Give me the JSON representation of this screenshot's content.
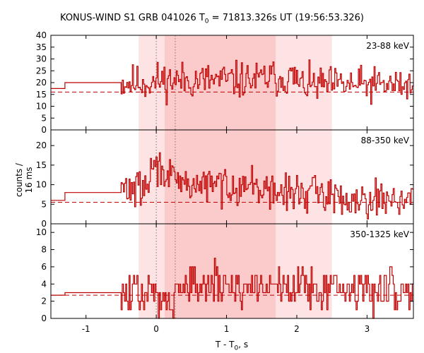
{
  "title": {
    "prefix": "KONUS-WIND S1 GRB 041026 T",
    "sub": "0",
    "suffix": " = 71813.326s UT (19:56:53.326)"
  },
  "xlabel": {
    "prefix": "T - T",
    "sub": "0",
    "suffix": ", s"
  },
  "ylabel": "counts / 16 ms",
  "colors": {
    "signal": "#c00000",
    "background_line": "#c00000",
    "outer_interval_fill": "#fde3e3",
    "inner_interval_fill": "#fbcaca",
    "marker_line": "#777777"
  },
  "chart_data": {
    "type": "line",
    "x_axis": {
      "xlim": [
        -1.5,
        3.66
      ],
      "ticks": [
        -1,
        0,
        1,
        2,
        3
      ]
    },
    "shaded_intervals": [
      {
        "x0": -0.25,
        "x1": 2.5,
        "shade": "light"
      },
      {
        "x0": 0.12,
        "x1": 1.7,
        "shade": "dark"
      }
    ],
    "marker_lines": [
      0.0,
      0.27
    ],
    "panels": [
      {
        "label": "23-88 keV",
        "ylim": [
          0,
          40
        ],
        "yticks": [
          0,
          5,
          10,
          15,
          20,
          25,
          30,
          35,
          40
        ],
        "background_level": 16,
        "pre_steps": [
          [
            -1.5,
            -1.3,
            17.5
          ],
          [
            -1.3,
            -0.5,
            20
          ]
        ],
        "binned_start": -0.5,
        "bin_width": 0.016,
        "binned_end": 3.66,
        "mean_segments": [
          [
            -0.5,
            0.0,
            20
          ],
          [
            0.0,
            0.5,
            21
          ],
          [
            0.5,
            1.5,
            21
          ],
          [
            1.5,
            2.0,
            22
          ],
          [
            2.0,
            3.66,
            19
          ]
        ],
        "noise_amplitude": 4,
        "seed": 11
      },
      {
        "label": "88-350 keV",
        "ylim": [
          0,
          24
        ],
        "yticks": [
          0,
          5,
          10,
          15,
          20
        ],
        "background_level": 5.5,
        "pre_steps": [
          [
            -1.5,
            -1.3,
            6
          ],
          [
            -1.3,
            -0.5,
            8
          ]
        ],
        "binned_start": -0.5,
        "bin_width": 0.016,
        "binned_end": 3.66,
        "mean_segments": [
          [
            -0.5,
            -0.1,
            9
          ],
          [
            -0.1,
            0.2,
            14
          ],
          [
            0.2,
            0.5,
            10
          ],
          [
            0.5,
            1.5,
            10
          ],
          [
            1.5,
            2.5,
            8
          ],
          [
            2.5,
            3.66,
            6.5
          ]
        ],
        "noise_amplitude": 3,
        "seed": 29
      },
      {
        "label": "350-1325 keV",
        "ylim": [
          0,
          11
        ],
        "yticks": [
          0,
          2,
          4,
          6,
          8,
          10
        ],
        "background_level": 2.7,
        "pre_steps": [
          [
            -1.5,
            -1.3,
            2.7
          ],
          [
            -1.3,
            -0.5,
            3
          ]
        ],
        "binned_start": -0.5,
        "bin_width": 0.016,
        "binned_end": 3.66,
        "mean_segments": [
          [
            -0.5,
            0.0,
            2.8
          ],
          [
            0.0,
            0.3,
            2.6
          ],
          [
            0.3,
            2.5,
            3.8
          ],
          [
            2.5,
            3.66,
            3.3
          ]
        ],
        "noise_amplitude": 2,
        "seed": 47
      }
    ]
  }
}
